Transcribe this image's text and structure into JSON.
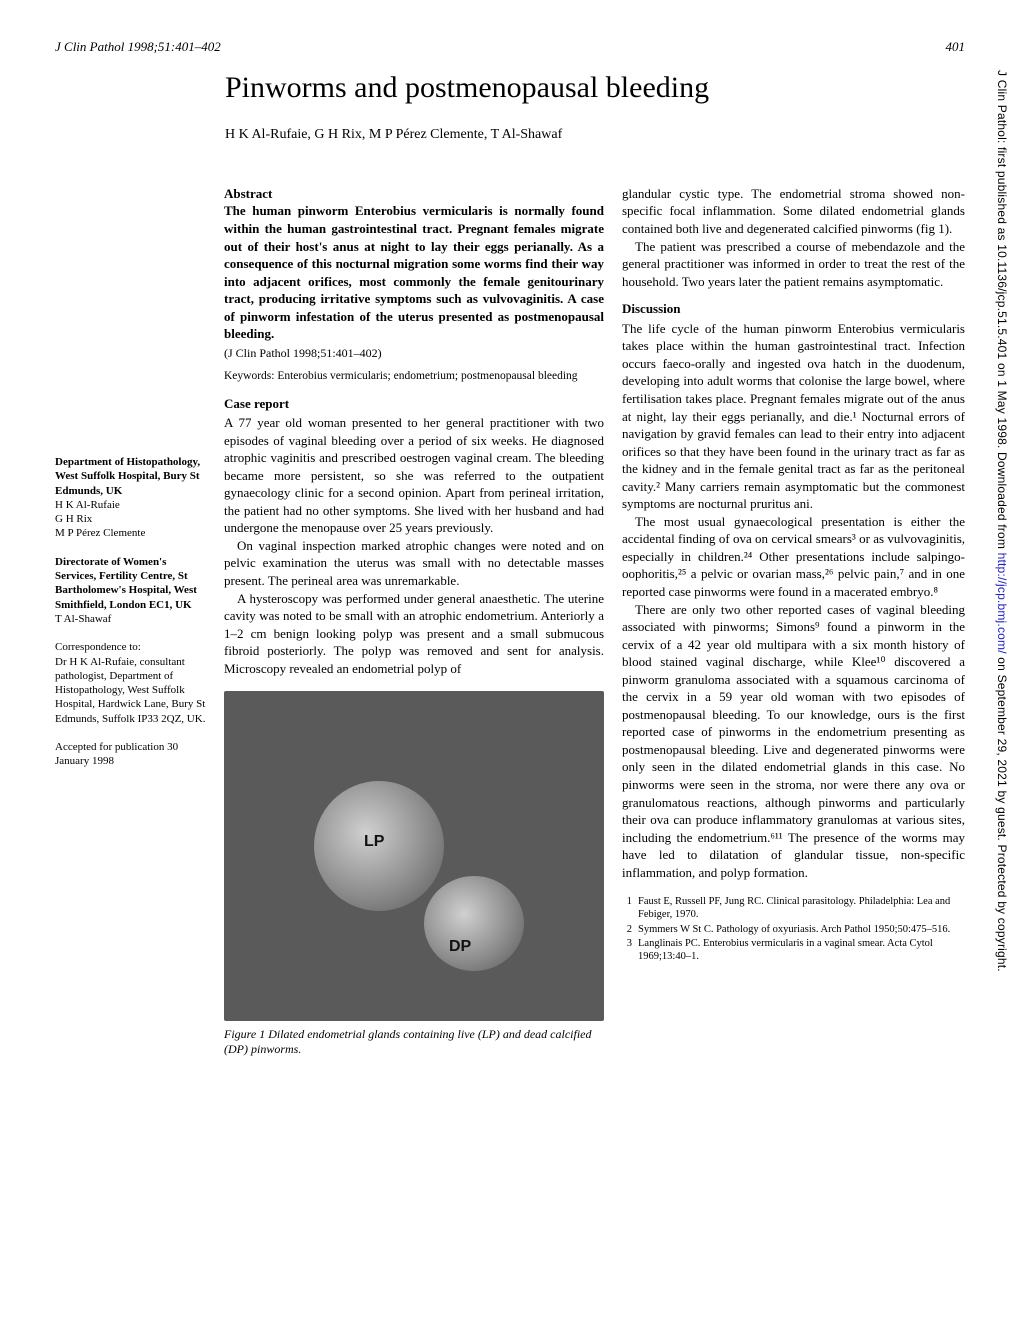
{
  "header": {
    "journal_ref": "J Clin Pathol 1998;51:401–402",
    "page_num": "401"
  },
  "title": "Pinworms and postmenopausal bleeding",
  "authors": "H K Al-Rufaie, G H Rix, M P Pérez Clemente, T Al-Shawaf",
  "sidebar": {
    "dept1_title": "Department of Histopathology, West Suffolk Hospital, Bury St Edmunds, UK",
    "dept1_names": "H K Al-Rufaie\nG H Rix\nM P Pérez Clemente",
    "dept2_title": "Directorate of Women's Services, Fertility Centre, St Bartholomew's Hospital, West Smithfield, London EC1, UK",
    "dept2_names": "T Al-Shawaf",
    "corr_label": "Correspondence to:",
    "corr_body": "Dr H K Al-Rufaie, consultant pathologist, Department of Histopathology, West Suffolk Hospital, Hardwick Lane, Bury St Edmunds, Suffolk IP33 2QZ, UK.",
    "accepted": "Accepted for publication 30 January 1998"
  },
  "abstract": {
    "heading": "Abstract",
    "body": "The human pinworm Enterobius vermicularis is normally found within the human gastrointestinal tract. Pregnant females migrate out of their host's anus at night to lay their eggs perianally. As a consequence of this nocturnal migration some worms find their way into adjacent orifices, most commonly the female genitourinary tract, producing irritative symptoms such as vulvovaginitis. A case of pinworm infestation of the uterus presented as postmenopausal bleeding.",
    "cite": "(J Clin Pathol 1998;51:401–402)",
    "keywords": "Keywords: Enterobius vermicularis; endometrium; postmenopausal bleeding"
  },
  "sections": {
    "case_heading": "Case report",
    "case_p1": "A 77 year old woman presented to her general practitioner with two episodes of vaginal bleeding over a period of six weeks. He diagnosed atrophic vaginitis and prescribed oestrogen vaginal cream. The bleeding became more persistent, so she was referred to the outpatient gynaecology clinic for a second opinion. Apart from perineal irritation, the patient had no other symptoms. She lived with her husband and had undergone the menopause over 25 years previously.",
    "case_p2": "On vaginal inspection marked atrophic changes were noted and on pelvic examination the uterus was small with no detectable masses present. The perineal area was unremarkable.",
    "case_p3": "A hysteroscopy was performed under general anaesthetic. The uterine cavity was noted to be small with an atrophic endometrium. Anteriorly a 1–2 cm benign looking polyp was present and a small submucous fibroid posteriorly. The polyp was removed and sent for analysis. Microscopy revealed an endometrial polyp of",
    "col2_p1": "glandular cystic type. The endometrial stroma showed non-specific focal inflammation. Some dilated endometrial glands contained both live and degenerated calcified pinworms (fig 1).",
    "col2_p2": "The patient was prescribed a course of mebendazole and the general practitioner was informed in order to treat the rest of the household. Two years later the patient remains asymptomatic.",
    "disc_heading": "Discussion",
    "disc_p1": "The life cycle of the human pinworm Enterobius vermicularis takes place within the human gastrointestinal tract. Infection occurs faeco-orally and ingested ova hatch in the duodenum, developing into adult worms that colonise the large bowel, where fertilisation takes place. Pregnant females migrate out of the anus at night, lay their eggs perianally, and die.¹ Nocturnal errors of navigation by gravid females can lead to their entry into adjacent orifices so that they have been found in the urinary tract as far as the kidney and in the female genital tract as far as the peritoneal cavity.² Many carriers remain asymptomatic but the commonest symptoms are nocturnal pruritus ani.",
    "disc_p2": "The most usual gynaecological presentation is either the accidental finding of ova on cervical smears³ or as vulvovaginitis, especially in children.²⁴ Other presentations include salpingo-oophoritis,²⁵ a pelvic or ovarian mass,²⁶ pelvic pain,⁷ and in one reported case pinworms were found in a macerated embryo.⁸",
    "disc_p3": "There are only two other reported cases of vaginal bleeding associated with pinworms; Simons⁹ found a pinworm in the cervix of a 42 year old multipara with a six month history of blood stained vaginal discharge, while Klee¹⁰ discovered a pinworm granuloma associated with a squamous carcinoma of the cervix in a 59 year old woman with two episodes of postmenopausal bleeding. To our knowledge, ours is the first reported case of pinworms in the endometrium presenting as postmenopausal bleeding. Live and degenerated pinworms were only seen in the dilated endometrial glands in this case. No pinworms were seen in the stroma, nor were there any ova or granulomatous reactions, although pinworms and particularly their ova can produce inflammatory granulomas at various sites, including the endometrium.⁶¹¹ The presence of the worms may have led to dilatation of glandular tissue, non-specific inflammation, and polyp formation."
  },
  "figure": {
    "lp_label": "LP",
    "dp_label": "DP",
    "caption": "Figure 1   Dilated endometrial glands containing live (LP) and dead calcified (DP) pinworms."
  },
  "references": [
    {
      "n": "1",
      "t": "Faust E, Russell PF, Jung RC. Clinical parasitology. Philadelphia: Lea and Febiger, 1970."
    },
    {
      "n": "2",
      "t": "Symmers W St C. Pathology of oxyuriasis. Arch Pathol 1950;50:475–516."
    },
    {
      "n": "3",
      "t": "Langlinais PC. Enterobius vermicularis in a vaginal smear. Acta Cytol 1969;13:40–1."
    }
  ],
  "side_text": {
    "pre": "J Clin Pathol: first published as 10.1136/jcp.51.5.401 on 1 May 1998. Downloaded from ",
    "link": "http://jcp.bmj.com/",
    "post": " on September 29, 2021 by guest. Protected by copyright."
  }
}
